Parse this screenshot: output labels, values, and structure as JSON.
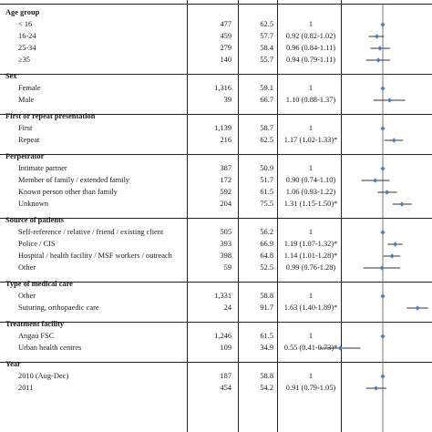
{
  "header": {
    "n": "",
    "pct": "",
    "or": ""
  },
  "rows": [
    {
      "type": "header",
      "label": "Age group"
    },
    {
      "type": "item",
      "label": "< 16",
      "n": "477",
      "pct": "62.5",
      "or": "1",
      "point": 1,
      "lo": 1,
      "hi": 1
    },
    {
      "type": "item",
      "label": "16-24",
      "n": "459",
      "pct": "57.7",
      "or": "0.92 (0.82-1.02)",
      "point": 0.92,
      "lo": 0.82,
      "hi": 1.02
    },
    {
      "type": "item",
      "label": "25-34",
      "n": "279",
      "pct": "58.4",
      "or": "0.96 (0.84-1.11)",
      "point": 0.96,
      "lo": 0.84,
      "hi": 1.11
    },
    {
      "type": "item",
      "label": "≥35",
      "n": "140",
      "pct": "55.7",
      "or": "0.94 (0.79-1.11)",
      "point": 0.94,
      "lo": 0.79,
      "hi": 1.11
    },
    {
      "type": "header",
      "label": "Sex"
    },
    {
      "type": "item",
      "label": "Female",
      "n": "1,316",
      "pct": "59.1",
      "or": "1",
      "point": 1,
      "lo": 1,
      "hi": 1
    },
    {
      "type": "item",
      "label": "Male",
      "n": "39",
      "pct": "66.7",
      "or": "1.10 (0.88-1.37)",
      "point": 1.1,
      "lo": 0.88,
      "hi": 1.37
    },
    {
      "type": "header",
      "label": "First or repeat presentation"
    },
    {
      "type": "item",
      "label": "First",
      "n": "1,139",
      "pct": "58.7",
      "or": "1",
      "point": 1,
      "lo": 1,
      "hi": 1
    },
    {
      "type": "item",
      "label": "Repeat",
      "n": "216",
      "pct": "62.5",
      "or": "1.17 (1.02-1.33)*",
      "point": 1.17,
      "lo": 1.02,
      "hi": 1.33
    },
    {
      "type": "header",
      "label": "Perpetrator"
    },
    {
      "type": "item",
      "label": "Intimate partner",
      "n": "387",
      "pct": "50.9",
      "or": "1",
      "point": 1,
      "lo": 1,
      "hi": 1
    },
    {
      "type": "item",
      "label": "Member of family / extended family",
      "n": "172",
      "pct": "51.7",
      "or": "0.90 (0.74-1.10)",
      "point": 0.9,
      "lo": 0.74,
      "hi": 1.1
    },
    {
      "type": "item",
      "label": "Known person other than family",
      "n": "592",
      "pct": "61.5",
      "or": "1.06 (0.93-1.22)",
      "point": 1.06,
      "lo": 0.93,
      "hi": 1.22
    },
    {
      "type": "item",
      "label": "Unknown",
      "n": "204",
      "pct": "75.5",
      "or": "1.31 (1.15-1.50)*",
      "point": 1.31,
      "lo": 1.15,
      "hi": 1.5
    },
    {
      "type": "header",
      "label": "Source of patients"
    },
    {
      "type": "item",
      "label": "Self-reference / relative / friend / existing client",
      "n": "505",
      "pct": "56.2",
      "or": "1",
      "point": 1,
      "lo": 1,
      "hi": 1
    },
    {
      "type": "item",
      "label": "Police / CIS",
      "n": "393",
      "pct": "66.9",
      "or": "1.19 (1.07-1.32)*",
      "point": 1.19,
      "lo": 1.07,
      "hi": 1.32
    },
    {
      "type": "item",
      "label": "Hospital / health facility / MSF workers / outreach",
      "n": "398",
      "pct": "64.8",
      "or": "1.14 (1.01-1.28)*",
      "point": 1.14,
      "lo": 1.01,
      "hi": 1.28
    },
    {
      "type": "item",
      "label": "Other",
      "n": "59",
      "pct": "52.5",
      "or": "0.99 (0.76-1.28)",
      "point": 0.99,
      "lo": 0.76,
      "hi": 1.28
    },
    {
      "type": "header",
      "label": "Type of medical care"
    },
    {
      "type": "item",
      "label": "Other",
      "n": "1,331",
      "pct": "58.8",
      "or": "1",
      "point": 1,
      "lo": 1,
      "hi": 1
    },
    {
      "type": "item",
      "label": "Suturing, orthopaedic care",
      "n": "24",
      "pct": "91.7",
      "or": "1.63 (1.40-1.89)*",
      "point": 1.63,
      "lo": 1.4,
      "hi": 1.89
    },
    {
      "type": "header",
      "label": "Treatment facility"
    },
    {
      "type": "item",
      "label": "Angau FSC",
      "n": "1,246",
      "pct": "61.5",
      "or": "1",
      "point": 1,
      "lo": 1,
      "hi": 1
    },
    {
      "type": "item",
      "label": "Urban health centres",
      "n": "109",
      "pct": "34.9",
      "or": "0.55 (0.41-0.73)*",
      "point": 0.55,
      "lo": 0.41,
      "hi": 0.73
    },
    {
      "type": "header",
      "label": "Year"
    },
    {
      "type": "item",
      "label": "2010 (Aug-Dec)",
      "n": "187",
      "pct": "58.8",
      "or": "1",
      "point": 1,
      "lo": 1,
      "hi": 1
    },
    {
      "type": "item",
      "label": "2011",
      "n": "454",
      "pct": "54.2",
      "or": "0.91 (0.79-1.05)",
      "point": 0.91,
      "lo": 0.79,
      "hi": 1.05
    }
  ],
  "chart_data": {
    "type": "forest",
    "reference_value": 1,
    "series": [
      {
        "label": "< 16",
        "point": 1,
        "lo": 1,
        "hi": 1
      },
      {
        "label": "16-24",
        "point": 0.92,
        "lo": 0.82,
        "hi": 1.02
      },
      {
        "label": "25-34",
        "point": 0.96,
        "lo": 0.84,
        "hi": 1.11
      },
      {
        "label": "≥35",
        "point": 0.94,
        "lo": 0.79,
        "hi": 1.11
      },
      {
        "label": "Female",
        "point": 1,
        "lo": 1,
        "hi": 1
      },
      {
        "label": "Male",
        "point": 1.1,
        "lo": 0.88,
        "hi": 1.37
      },
      {
        "label": "First",
        "point": 1,
        "lo": 1,
        "hi": 1
      },
      {
        "label": "Repeat",
        "point": 1.17,
        "lo": 1.02,
        "hi": 1.33
      },
      {
        "label": "Intimate partner",
        "point": 1,
        "lo": 1,
        "hi": 1
      },
      {
        "label": "Member of family / extended family",
        "point": 0.9,
        "lo": 0.74,
        "hi": 1.1
      },
      {
        "label": "Known person other than family",
        "point": 1.06,
        "lo": 0.93,
        "hi": 1.22
      },
      {
        "label": "Unknown",
        "point": 1.31,
        "lo": 1.15,
        "hi": 1.5
      },
      {
        "label": "Self-reference / relative / friend / existing client",
        "point": 1,
        "lo": 1,
        "hi": 1
      },
      {
        "label": "Police / CIS",
        "point": 1.19,
        "lo": 1.07,
        "hi": 1.32
      },
      {
        "label": "Hospital / health facility / MSF workers / outreach",
        "point": 1.14,
        "lo": 1.01,
        "hi": 1.28
      },
      {
        "label": "Other",
        "point": 0.99,
        "lo": 0.76,
        "hi": 1.28
      },
      {
        "label": "Other",
        "point": 1,
        "lo": 1,
        "hi": 1
      },
      {
        "label": "Suturing, orthopaedic care",
        "point": 1.63,
        "lo": 1.4,
        "hi": 1.89
      },
      {
        "label": "Angau FSC",
        "point": 1,
        "lo": 1,
        "hi": 1
      },
      {
        "label": "Urban health centres",
        "point": 0.55,
        "lo": 0.41,
        "hi": 0.73
      },
      {
        "label": "2010 (Aug-Dec)",
        "point": 1,
        "lo": 1,
        "hi": 1
      },
      {
        "label": "2011",
        "point": 0.91,
        "lo": 0.79,
        "hi": 1.05
      }
    ],
    "colors": {
      "marker": "#4a7db8",
      "line": "#333333"
    }
  }
}
